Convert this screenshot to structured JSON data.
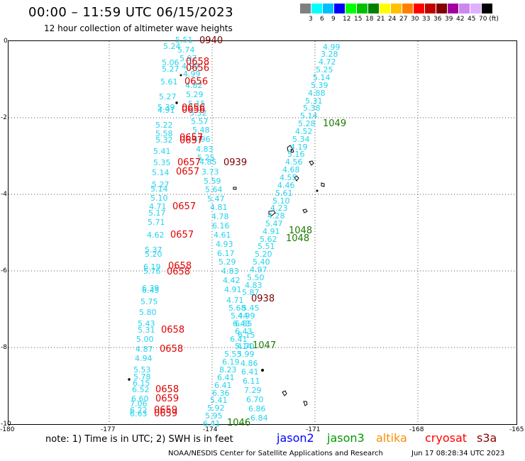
{
  "header": {
    "title": "00:00 – 11:59 UTC 06/15/2023",
    "subtitle": "12 hour collection of altimeter wave heights"
  },
  "color_scale": {
    "swatches": [
      "#808080",
      "#00ffff",
      "#00bfff",
      "#0000ff",
      "#00ff00",
      "#00c000",
      "#008000",
      "#ffff00",
      "#ffc000",
      "#ff8000",
      "#ff0000",
      "#c00000",
      "#800000",
      "#a000a0",
      "#cc88ee",
      "#e0b0ff",
      "#000000"
    ],
    "labels": [
      "3",
      "6",
      "9",
      "12",
      "15",
      "18",
      "21",
      "24",
      "27",
      "30",
      "33",
      "36",
      "39",
      "42",
      "45",
      "70 (ft)"
    ]
  },
  "axes": {
    "x_ticks": [
      "-180",
      "-177",
      "-174",
      "-171",
      "-168",
      "-165"
    ],
    "y_ticks": [
      "0",
      "-2",
      "-4",
      "-6",
      "-8",
      "-10"
    ]
  },
  "heights_cyan": [
    {
      "t": "4.99",
      "x": 455,
      "y": 66
    },
    {
      "t": "3.28",
      "x": 452,
      "y": 76
    },
    {
      "t": "4.72",
      "x": 449,
      "y": 87
    },
    {
      "t": "5.25",
      "x": 445,
      "y": 98
    },
    {
      "t": "5.14",
      "x": 441,
      "y": 109
    },
    {
      "t": "5.39",
      "x": 438,
      "y": 120
    },
    {
      "t": "4.88",
      "x": 434,
      "y": 131
    },
    {
      "t": "5.31",
      "x": 430,
      "y": 142
    },
    {
      "t": "5.38",
      "x": 427,
      "y": 152
    },
    {
      "t": "5.14",
      "x": 423,
      "y": 163
    },
    {
      "t": "5.28",
      "x": 420,
      "y": 174
    },
    {
      "t": "4.52",
      "x": 416,
      "y": 185
    },
    {
      "t": "5.34",
      "x": 412,
      "y": 196
    },
    {
      "t": "4.19",
      "x": 409,
      "y": 207
    },
    {
      "t": "5.16",
      "x": 405,
      "y": 217
    },
    {
      "t": "4.56",
      "x": 402,
      "y": 228
    },
    {
      "t": "4.68",
      "x": 398,
      "y": 239
    },
    {
      "t": "4.55",
      "x": 394,
      "y": 250
    },
    {
      "t": "4.46",
      "x": 391,
      "y": 261
    },
    {
      "t": "5.61",
      "x": 388,
      "y": 272
    },
    {
      "t": "5.10",
      "x": 384,
      "y": 283
    },
    {
      "t": "4.23",
      "x": 381,
      "y": 293
    },
    {
      "t": "4.28",
      "x": 377,
      "y": 304
    },
    {
      "t": "5.47",
      "x": 374,
      "y": 315
    },
    {
      "t": "4.91",
      "x": 370,
      "y": 326
    },
    {
      "t": "5.62",
      "x": 366,
      "y": 337
    },
    {
      "t": "5.51",
      "x": 363,
      "y": 347
    },
    {
      "t": "5.20",
      "x": 359,
      "y": 358
    },
    {
      "t": "5.40",
      "x": 356,
      "y": 369
    },
    {
      "t": "4.97",
      "x": 352,
      "y": 380
    },
    {
      "t": "5.50",
      "x": 348,
      "y": 391
    },
    {
      "t": "4.83",
      "x": 345,
      "y": 402
    },
    {
      "t": "5.87",
      "x": 341,
      "y": 412
    },
    {
      "t": "4.71",
      "x": 319,
      "y": 423
    },
    {
      "t": "5.68",
      "x": 322,
      "y": 434
    },
    {
      "t": "5.45",
      "x": 341,
      "y": 434
    },
    {
      "t": "5.44",
      "x": 325,
      "y": 445
    },
    {
      "t": "4.99",
      "x": 335,
      "y": 445
    },
    {
      "t": "6.43",
      "x": 328,
      "y": 456
    },
    {
      "t": "6.85",
      "x": 331,
      "y": 456
    },
    {
      "t": "6.43",
      "x": 331,
      "y": 467
    },
    {
      "t": "6.41",
      "x": 324,
      "y": 478
    },
    {
      "t": "6.15",
      "x": 335,
      "y": 472
    },
    {
      "t": "5.14",
      "x": 331,
      "y": 488
    },
    {
      "t": "4.70",
      "x": 334,
      "y": 488
    },
    {
      "t": "5.53",
      "x": 316,
      "y": 499
    },
    {
      "t": "5.99",
      "x": 334,
      "y": 499
    },
    {
      "t": "6.19",
      "x": 313,
      "y": 510
    },
    {
      "t": "4.86",
      "x": 339,
      "y": 512
    },
    {
      "t": "8.23",
      "x": 309,
      "y": 521
    },
    {
      "t": "6.41",
      "x": 340,
      "y": 524
    },
    {
      "t": "6.41",
      "x": 306,
      "y": 532
    },
    {
      "t": "6.11",
      "x": 342,
      "y": 537
    },
    {
      "t": "6.41",
      "x": 302,
      "y": 543
    },
    {
      "t": "7.29",
      "x": 344,
      "y": 550
    },
    {
      "t": "6.36",
      "x": 299,
      "y": 554
    },
    {
      "t": "5.41",
      "x": 296,
      "y": 564
    },
    {
      "t": "6.70",
      "x": 347,
      "y": 563
    },
    {
      "t": "5.92",
      "x": 292,
      "y": 575
    },
    {
      "t": "6.86",
      "x": 350,
      "y": 576
    },
    {
      "t": "5.95",
      "x": 289,
      "y": 586
    },
    {
      "t": "6.84",
      "x": 353,
      "y": 589
    },
    {
      "t": "6.41",
      "x": 286,
      "y": 597
    },
    {
      "t": "5.51",
      "x": 247,
      "y": 56
    },
    {
      "t": "5.24",
      "x": 230,
      "y": 65
    },
    {
      "t": "5.74",
      "x": 250,
      "y": 70
    },
    {
      "t": "5.97",
      "x": 253,
      "y": 82
    },
    {
      "t": "5.06",
      "x": 228,
      "y": 88
    },
    {
      "t": "4.99",
      "x": 256,
      "y": 93
    },
    {
      "t": "5.27",
      "x": 228,
      "y": 97
    },
    {
      "t": "4.99",
      "x": 258,
      "y": 104
    },
    {
      "t": "5.61",
      "x": 226,
      "y": 115
    },
    {
      "t": "4.82",
      "x": 261,
      "y": 120
    },
    {
      "t": "5.29",
      "x": 262,
      "y": 133
    },
    {
      "t": "5.27",
      "x": 224,
      "y": 136
    },
    {
      "t": "5.15",
      "x": 265,
      "y": 146
    },
    {
      "t": "5.39",
      "x": 222,
      "y": 151
    },
    {
      "t": "4.91",
      "x": 222,
      "y": 155
    },
    {
      "t": "5.32",
      "x": 267,
      "y": 159
    },
    {
      "t": "5.57",
      "x": 269,
      "y": 171
    },
    {
      "t": "5.22",
      "x": 219,
      "y": 176
    },
    {
      "t": "5.48",
      "x": 271,
      "y": 183
    },
    {
      "t": "5.58",
      "x": 219,
      "y": 188
    },
    {
      "t": "4.96",
      "x": 272,
      "y": 196
    },
    {
      "t": "5.32",
      "x": 219,
      "y": 197
    },
    {
      "t": "4.83",
      "x": 276,
      "y": 210
    },
    {
      "t": "5.41",
      "x": 216,
      "y": 213
    },
    {
      "t": "5.25",
      "x": 278,
      "y": 222
    },
    {
      "t": "4.85",
      "x": 281,
      "y": 228
    },
    {
      "t": "5.35",
      "x": 216,
      "y": 229
    },
    {
      "t": "5.14",
      "x": 214,
      "y": 243
    },
    {
      "t": "3.73",
      "x": 284,
      "y": 242
    },
    {
      "t": "5.59",
      "x": 287,
      "y": 255
    },
    {
      "t": "5.27",
      "x": 214,
      "y": 260
    },
    {
      "t": "5.14",
      "x": 212,
      "y": 266
    },
    {
      "t": "5.64",
      "x": 289,
      "y": 267
    },
    {
      "t": "5.10",
      "x": 212,
      "y": 279
    },
    {
      "t": "5.47",
      "x": 292,
      "y": 280
    },
    {
      "t": "4.71",
      "x": 210,
      "y": 291
    },
    {
      "t": "4.81",
      "x": 296,
      "y": 292
    },
    {
      "t": "5.17",
      "x": 209,
      "y": 300
    },
    {
      "t": "4.78",
      "x": 298,
      "y": 305
    },
    {
      "t": "5.71",
      "x": 208,
      "y": 313
    },
    {
      "t": "6.16",
      "x": 299,
      "y": 318
    },
    {
      "t": "4.62",
      "x": 207,
      "y": 331
    },
    {
      "t": "4.61",
      "x": 301,
      "y": 331
    },
    {
      "t": "4.93",
      "x": 304,
      "y": 344
    },
    {
      "t": "5.37",
      "x": 204,
      "y": 352
    },
    {
      "t": "5.20",
      "x": 204,
      "y": 358
    },
    {
      "t": "6.17",
      "x": 306,
      "y": 357
    },
    {
      "t": "5.29",
      "x": 308,
      "y": 369
    },
    {
      "t": "6.19",
      "x": 202,
      "y": 376
    },
    {
      "t": "5.76",
      "x": 202,
      "y": 382
    },
    {
      "t": "4.83",
      "x": 312,
      "y": 382
    },
    {
      "t": "4.42",
      "x": 314,
      "y": 395
    },
    {
      "t": "6.39",
      "x": 200,
      "y": 406
    },
    {
      "t": "6.45",
      "x": 200,
      "y": 409
    },
    {
      "t": "4.91",
      "x": 316,
      "y": 408
    },
    {
      "t": "5.75",
      "x": 198,
      "y": 425
    },
    {
      "t": "5.80",
      "x": 196,
      "y": 440
    },
    {
      "t": "5.43",
      "x": 194,
      "y": 456
    },
    {
      "t": "5.31",
      "x": 194,
      "y": 465
    },
    {
      "t": "5.00",
      "x": 192,
      "y": 478
    },
    {
      "t": "4.87",
      "x": 191,
      "y": 492
    },
    {
      "t": "4.94",
      "x": 190,
      "y": 505
    },
    {
      "t": "5.53",
      "x": 188,
      "y": 521
    },
    {
      "t": "5.78",
      "x": 188,
      "y": 531
    },
    {
      "t": "6.15",
      "x": 187,
      "y": 540
    },
    {
      "t": "6.52",
      "x": 186,
      "y": 549
    },
    {
      "t": "6.60",
      "x": 185,
      "y": 562
    },
    {
      "t": "7.06",
      "x": 183,
      "y": 569
    },
    {
      "t": "6.22",
      "x": 183,
      "y": 578
    },
    {
      "t": "6.63",
      "x": 183,
      "y": 583
    }
  ],
  "heights_red": [
    {
      "t": "0658",
      "x": 262,
      "y": 87
    },
    {
      "t": "0656",
      "x": 262,
      "y": 96
    },
    {
      "t": "0656",
      "x": 260,
      "y": 115
    },
    {
      "t": "0656",
      "x": 256,
      "y": 152
    },
    {
      "t": "0656",
      "x": 256,
      "y": 155
    },
    {
      "t": "0657",
      "x": 253,
      "y": 194
    },
    {
      "t": "0657",
      "x": 253,
      "y": 198
    },
    {
      "t": "0657",
      "x": 250,
      "y": 229
    },
    {
      "t": "0657",
      "x": 248,
      "y": 242
    },
    {
      "t": "0657",
      "x": 243,
      "y": 291
    },
    {
      "t": "0657",
      "x": 240,
      "y": 331
    },
    {
      "t": "0658",
      "x": 237,
      "y": 375
    },
    {
      "t": "0658",
      "x": 235,
      "y": 383
    },
    {
      "t": "0658",
      "x": 227,
      "y": 465
    },
    {
      "t": "0658",
      "x": 225,
      "y": 492
    },
    {
      "t": "0658",
      "x": 219,
      "y": 549
    },
    {
      "t": "0659",
      "x": 219,
      "y": 562
    },
    {
      "t": "0659",
      "x": 217,
      "y": 578
    },
    {
      "t": "0659",
      "x": 217,
      "y": 583
    }
  ],
  "times_darkred": [
    {
      "t": "0940",
      "x": 281,
      "y": 57
    },
    {
      "t": "0939",
      "x": 315,
      "y": 229
    },
    {
      "t": "0938",
      "x": 354,
      "y": 421
    }
  ],
  "times_green": [
    {
      "t": "1049",
      "x": 455,
      "y": 174
    },
    {
      "t": "1048",
      "x": 407,
      "y": 325
    },
    {
      "t": "1048",
      "x": 403,
      "y": 336
    },
    {
      "t": "1047",
      "x": 356,
      "y": 487
    },
    {
      "t": "1046",
      "x": 320,
      "y": 596
    }
  ],
  "note": "note: 1) Time is in UTC; 2) SWH is in feet",
  "satellites": [
    {
      "name": "jason2",
      "color": "#0000ff"
    },
    {
      "name": "jason3",
      "color": "#009900"
    },
    {
      "name": "altika",
      "color": "#ff8c00"
    },
    {
      "name": "cryosat",
      "color": "#ff0000"
    },
    {
      "name": "s3a",
      "color": "#8b0000"
    }
  ],
  "footer": {
    "credit": "NOAA/NESDIS Center for Satellite Applications and Research",
    "timestamp": "Jun 17 08:28:34 UTC 2023"
  }
}
